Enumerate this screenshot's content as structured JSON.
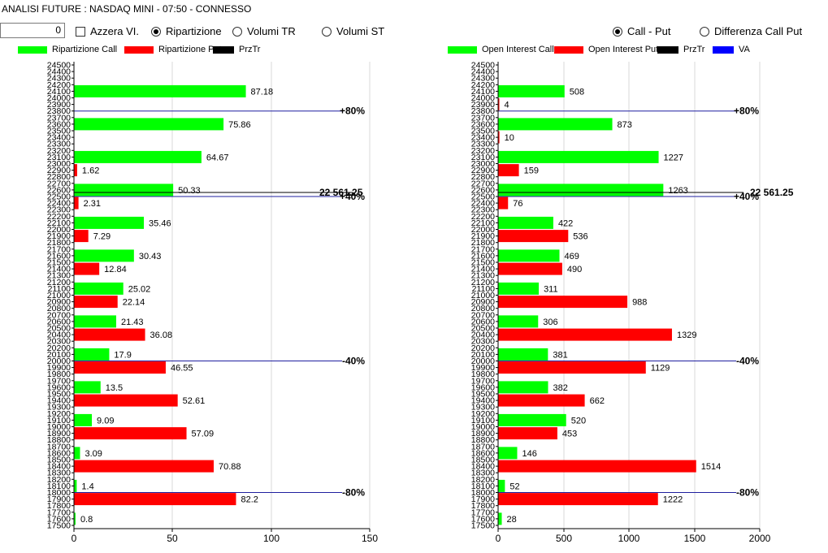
{
  "window": {
    "title": "ANALISI FUTURE : NASDAQ MINI - 07:50 - CONNESSO"
  },
  "controls": {
    "number_value": "0",
    "azzera_label": "Azzera VI.",
    "ripartizione_label": "Ripartizione",
    "volumi_tr_label": "Volumi TR",
    "volumi_st_label": "Volumi ST",
    "call_put_label": "Call - Put",
    "differenza_label": "Differenza Call Put",
    "selected_left": "Ripartizione",
    "selected_right": "Call - Put"
  },
  "chart_data": [
    {
      "type": "bar",
      "orientation": "horizontal",
      "legend": [
        "Ripartizione Call",
        "Ripartizione Put",
        "PrzTr"
      ],
      "colors": {
        "call": "#00ff00",
        "put": "#ff0000",
        "przt": "#000000"
      },
      "xlim": [
        0,
        150
      ],
      "xticks": [
        "0",
        "50",
        "100",
        "150"
      ],
      "ylim": [
        17500,
        24500
      ],
      "yticks": [
        "24500",
        "24400",
        "24300",
        "24200",
        "24100",
        "24000",
        "23900",
        "23800",
        "23700",
        "23600",
        "23500",
        "23400",
        "23300",
        "23200",
        "23100",
        "23000",
        "22900",
        "22800",
        "22700",
        "22600",
        "22500",
        "22400",
        "22300",
        "22200",
        "22100",
        "22000",
        "21900",
        "21800",
        "21700",
        "21600",
        "21500",
        "21400",
        "21300",
        "21200",
        "21100",
        "21000",
        "20900",
        "20800",
        "20700",
        "20600",
        "20500",
        "20400",
        "20300",
        "20200",
        "20100",
        "20000",
        "19900",
        "19800",
        "19700",
        "19600",
        "19500",
        "19400",
        "19300",
        "19200",
        "19100",
        "19000",
        "18900",
        "18800",
        "18700",
        "18600",
        "18500",
        "18400",
        "18300",
        "18200",
        "18100",
        "18000",
        "17900",
        "17800",
        "17700",
        "17600",
        "17500"
      ],
      "call": [
        {
          "y": 24100,
          "value": 87.18,
          "label": "87.18"
        },
        {
          "y": 23600,
          "value": 75.86,
          "label": "75.86"
        },
        {
          "y": 23100,
          "value": 64.67,
          "label": "64.67"
        },
        {
          "y": 22600,
          "value": 50.33,
          "label": "50.33"
        },
        {
          "y": 22100,
          "value": 35.46,
          "label": "35.46"
        },
        {
          "y": 21600,
          "value": 30.43,
          "label": "30.43"
        },
        {
          "y": 21100,
          "value": 25.02,
          "label": "25.02"
        },
        {
          "y": 20600,
          "value": 21.43,
          "label": "21.43"
        },
        {
          "y": 20100,
          "value": 17.9,
          "label": "17.9"
        },
        {
          "y": 19600,
          "value": 13.5,
          "label": "13.5"
        },
        {
          "y": 19100,
          "value": 9.09,
          "label": "9.09"
        },
        {
          "y": 18600,
          "value": 3.09,
          "label": "3.09"
        },
        {
          "y": 18100,
          "value": 1.4,
          "label": "1.4"
        },
        {
          "y": 17600,
          "value": 0.8,
          "label": "0.8"
        }
      ],
      "put": [
        {
          "y": 22900,
          "value": 1.62,
          "label": "1.62"
        },
        {
          "y": 22400,
          "value": 2.31,
          "label": "2.31"
        },
        {
          "y": 21900,
          "value": 7.29,
          "label": "7.29"
        },
        {
          "y": 21400,
          "value": 12.84,
          "label": "12.84"
        },
        {
          "y": 20900,
          "value": 22.14,
          "label": "22.14"
        },
        {
          "y": 20400,
          "value": 36.08,
          "label": "36.08"
        },
        {
          "y": 19900,
          "value": 46.55,
          "label": "46.55"
        },
        {
          "y": 19400,
          "value": 52.61,
          "label": "52.61"
        },
        {
          "y": 18900,
          "value": 57.09,
          "label": "57.09"
        },
        {
          "y": 18400,
          "value": 70.88,
          "label": "70.88"
        },
        {
          "y": 17900,
          "value": 82.2,
          "label": "82.2"
        }
      ],
      "levels": [
        {
          "y": 23800,
          "label": "+80%"
        },
        {
          "y": 22500,
          "label": "+40%"
        },
        {
          "y": 20000,
          "label": "-40%"
        },
        {
          "y": 18000,
          "label": "-80%"
        }
      ],
      "price": {
        "y": 22561.25,
        "label": "22 561.25"
      }
    },
    {
      "type": "bar",
      "orientation": "horizontal",
      "legend": [
        "Open Interest Call",
        "Open Interest Put",
        "PrzTr",
        "VA"
      ],
      "colors": {
        "call": "#00ff00",
        "put": "#ff0000",
        "przt": "#000000",
        "va": "#0000ff"
      },
      "xlim": [
        0,
        2000
      ],
      "xticks": [
        "0",
        "500",
        "1000",
        "1500",
        "2000"
      ],
      "ylim": [
        17500,
        24500
      ],
      "yticks": [
        "24500",
        "24400",
        "24300",
        "24200",
        "24100",
        "24000",
        "23900",
        "23800",
        "23700",
        "23600",
        "23500",
        "23400",
        "23300",
        "23200",
        "23100",
        "23000",
        "22900",
        "22800",
        "22700",
        "22600",
        "22500",
        "22400",
        "22300",
        "22200",
        "22100",
        "22000",
        "21900",
        "21800",
        "21700",
        "21600",
        "21500",
        "21400",
        "21300",
        "21200",
        "21100",
        "21000",
        "20900",
        "20800",
        "20700",
        "20600",
        "20500",
        "20400",
        "20300",
        "20200",
        "20100",
        "20000",
        "19900",
        "19800",
        "19700",
        "19600",
        "19500",
        "19400",
        "19300",
        "19200",
        "19100",
        "19000",
        "18900",
        "18800",
        "18700",
        "18600",
        "18500",
        "18400",
        "18300",
        "18200",
        "18100",
        "18000",
        "17900",
        "17800",
        "17700",
        "17600",
        "17500"
      ],
      "call": [
        {
          "y": 24100,
          "value": 508,
          "label": "508"
        },
        {
          "y": 23600,
          "value": 873,
          "label": "873"
        },
        {
          "y": 23100,
          "value": 1227,
          "label": "1227"
        },
        {
          "y": 22600,
          "value": 1263,
          "label": "1263"
        },
        {
          "y": 22100,
          "value": 422,
          "label": "422"
        },
        {
          "y": 21600,
          "value": 469,
          "label": "469"
        },
        {
          "y": 21100,
          "value": 311,
          "label": "311"
        },
        {
          "y": 20600,
          "value": 306,
          "label": "306"
        },
        {
          "y": 20100,
          "value": 381,
          "label": "381"
        },
        {
          "y": 19600,
          "value": 382,
          "label": "382"
        },
        {
          "y": 19100,
          "value": 520,
          "label": "520"
        },
        {
          "y": 18600,
          "value": 146,
          "label": "146"
        },
        {
          "y": 18100,
          "value": 52,
          "label": "52"
        },
        {
          "y": 17600,
          "value": 28,
          "label": "28"
        }
      ],
      "put": [
        {
          "y": 23900,
          "value": 4,
          "label": "4"
        },
        {
          "y": 23400,
          "value": 10,
          "label": "10"
        },
        {
          "y": 22900,
          "value": 159,
          "label": "159"
        },
        {
          "y": 22400,
          "value": 76,
          "label": "76"
        },
        {
          "y": 21900,
          "value": 536,
          "label": "536"
        },
        {
          "y": 21400,
          "value": 490,
          "label": "490"
        },
        {
          "y": 20900,
          "value": 988,
          "label": "988"
        },
        {
          "y": 20400,
          "value": 1329,
          "label": "1329"
        },
        {
          "y": 19900,
          "value": 1129,
          "label": "1129"
        },
        {
          "y": 19400,
          "value": 662,
          "label": "662"
        },
        {
          "y": 18900,
          "value": 453,
          "label": "453"
        },
        {
          "y": 18400,
          "value": 1514,
          "label": "1514"
        },
        {
          "y": 17900,
          "value": 1222,
          "label": "1222"
        }
      ],
      "levels": [
        {
          "y": 23800,
          "label": "+80%"
        },
        {
          "y": 22500,
          "label": "+40%"
        },
        {
          "y": 20000,
          "label": "-40%"
        },
        {
          "y": 18000,
          "label": "-80%"
        }
      ],
      "price": {
        "y": 22561.25,
        "label": "22 561.25"
      }
    }
  ]
}
